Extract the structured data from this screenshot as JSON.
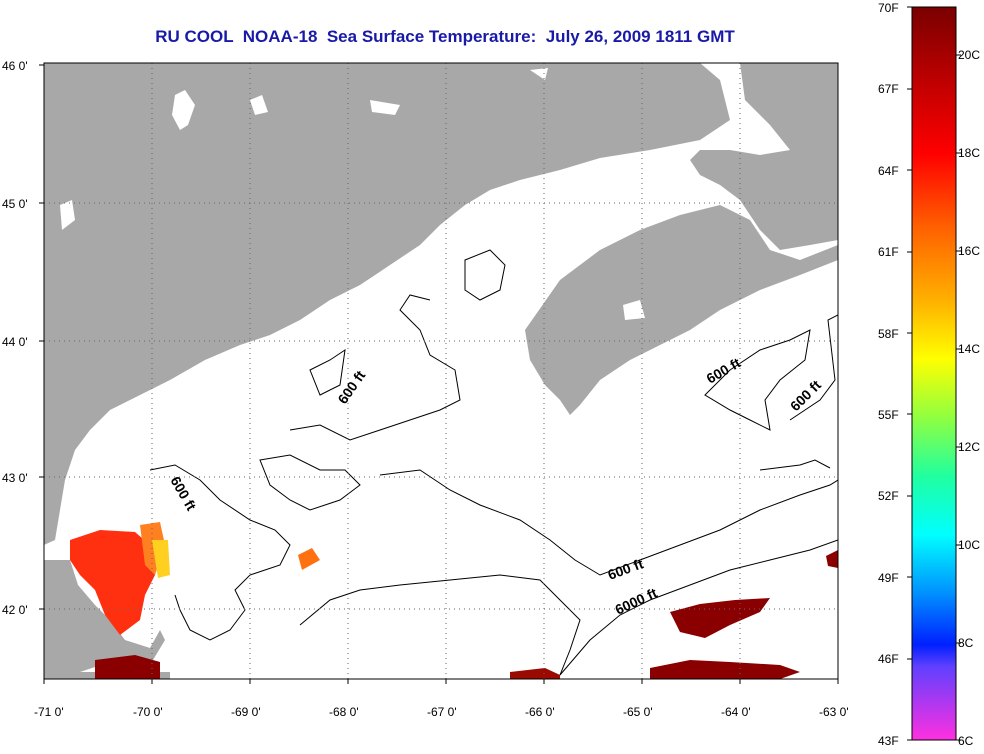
{
  "title": "RU COOL  NOAA-18  Sea Surface Temperature:  July 26, 2009 1811 GMT",
  "map": {
    "lat_labels": [
      "46 0'",
      "45 0'",
      "44 0'",
      "43 0'",
      "42 0'"
    ],
    "lon_labels": [
      "-71 0'",
      "-70 0'",
      "-69 0'",
      "-68 0'",
      "-67 0'",
      "-66 0'",
      "-65 0'",
      "-64 0'",
      "-63 0'"
    ],
    "contour_labels": [
      {
        "text": "600 ft",
        "rot": -55
      },
      {
        "text": "600 ft",
        "rot": 60
      },
      {
        "text": "600 ft",
        "rot": -30
      },
      {
        "text": "600 ft",
        "rot": -45
      },
      {
        "text": "600 ft",
        "rot": -20
      },
      {
        "text": "6000 ft",
        "rot": -25
      }
    ],
    "colors": {
      "land": "#a8a8a8",
      "ocean": "#ffffff",
      "grid": "#666666"
    }
  },
  "colorbar": {
    "f_labels": [
      "70F",
      "67F",
      "64F",
      "61F",
      "58F",
      "55F",
      "52F",
      "49F",
      "46F",
      "43F"
    ],
    "c_labels": [
      "20C",
      "18C",
      "16C",
      "14C",
      "12C",
      "10C",
      "8C",
      "6C"
    ],
    "stops": [
      "#7a0000",
      "#b00000",
      "#ff0000",
      "#ff6000",
      "#ffb000",
      "#ffff00",
      "#90ff40",
      "#20ffa0",
      "#00ffff",
      "#0090ff",
      "#0020ff",
      "#6040ff",
      "#ff30e0"
    ]
  }
}
